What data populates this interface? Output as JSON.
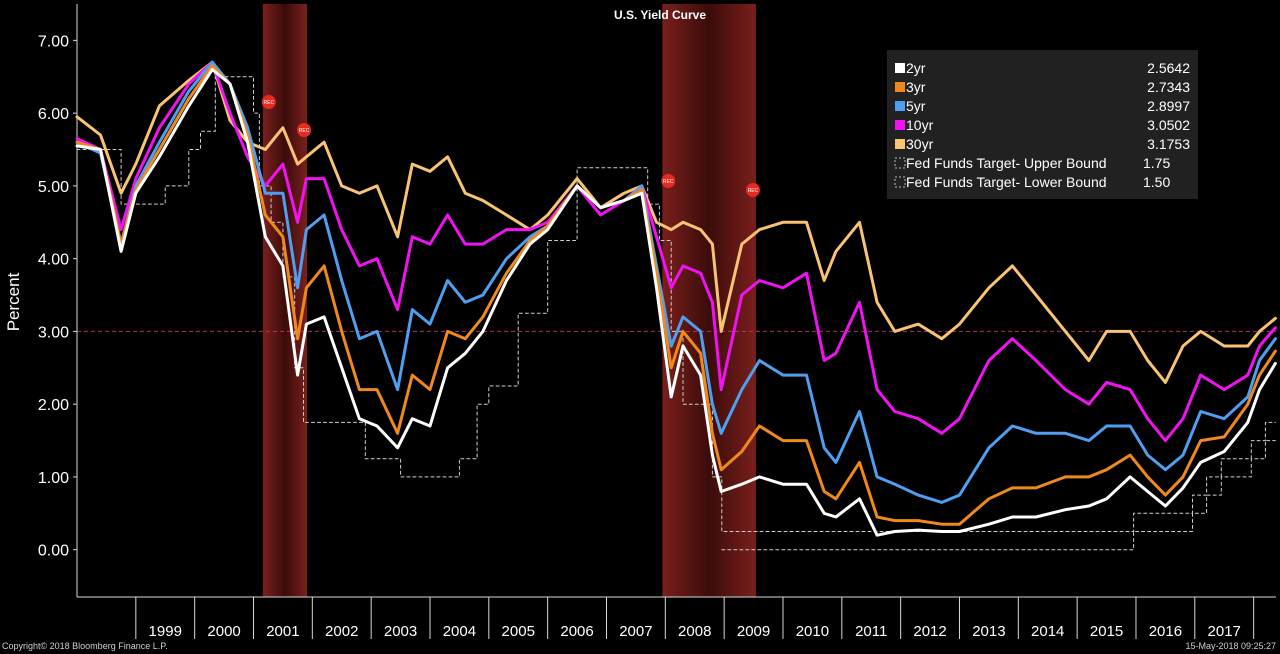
{
  "chart_data": {
    "type": "line",
    "title": "U.S. Yield Curve",
    "ylabel": "Percent",
    "xlabel": "",
    "ylim": [
      -0.65,
      7.5
    ],
    "xlim": [
      1998.0,
      2018.38
    ],
    "yticks": [
      0.0,
      1.0,
      2.0,
      3.0,
      4.0,
      5.0,
      6.0,
      7.0
    ],
    "ytick_labels": [
      "0.00",
      "1.00",
      "2.00",
      "3.00",
      "4.00",
      "5.00",
      "6.00",
      "7.00"
    ],
    "xtick_labels": [
      "1999",
      "2000",
      "2001",
      "2002",
      "2003",
      "2004",
      "2005",
      "2006",
      "2007",
      "2008",
      "2009",
      "2010",
      "2011",
      "2012",
      "2013",
      "2014",
      "2015",
      "2016",
      "2017"
    ],
    "reference_line": 3.0,
    "grid": false,
    "legend_position": "top-right",
    "recessions": [
      [
        2001.16,
        2001.91
      ],
      [
        2007.95,
        2009.54
      ]
    ],
    "recession_marker": "REC",
    "series": [
      {
        "name": "2yr",
        "value_label": "2.5642",
        "color": "#ffffff",
        "x": [
          1998.0,
          1998.4,
          1998.75,
          1999.0,
          1999.4,
          1999.9,
          2000.3,
          2000.6,
          2000.9,
          2001.2,
          2001.5,
          2001.75,
          2001.9,
          2002.2,
          2002.5,
          2002.8,
          2003.1,
          2003.45,
          2003.7,
          2004.0,
          2004.3,
          2004.6,
          2004.9,
          2005.3,
          2005.7,
          2006.0,
          2006.5,
          2006.9,
          2007.3,
          2007.6,
          2007.85,
          2008.1,
          2008.3,
          2008.6,
          2008.8,
          2008.95,
          2009.3,
          2009.6,
          2010.0,
          2010.4,
          2010.7,
          2010.9,
          2011.3,
          2011.6,
          2011.9,
          2012.3,
          2012.7,
          2013.0,
          2013.5,
          2013.9,
          2014.3,
          2014.8,
          2015.2,
          2015.5,
          2015.9,
          2016.2,
          2016.5,
          2016.8,
          2017.1,
          2017.5,
          2017.9,
          2018.1,
          2018.37
        ],
        "y": [
          5.55,
          5.5,
          4.1,
          4.9,
          5.4,
          6.1,
          6.6,
          6.4,
          5.6,
          4.3,
          3.9,
          2.4,
          3.1,
          3.2,
          2.5,
          1.8,
          1.7,
          1.4,
          1.8,
          1.7,
          2.5,
          2.7,
          3.0,
          3.7,
          4.2,
          4.4,
          5.0,
          4.7,
          4.8,
          4.9,
          3.6,
          2.1,
          2.8,
          2.4,
          1.3,
          0.8,
          0.9,
          1.0,
          0.9,
          0.9,
          0.5,
          0.45,
          0.7,
          0.2,
          0.25,
          0.27,
          0.25,
          0.25,
          0.35,
          0.45,
          0.45,
          0.55,
          0.6,
          0.7,
          1.0,
          0.8,
          0.6,
          0.85,
          1.2,
          1.35,
          1.75,
          2.2,
          2.56
        ]
      },
      {
        "name": "3yr",
        "value_label": "2.7343",
        "color": "#f0891d",
        "x": [
          1998.0,
          1998.4,
          1998.75,
          1999.0,
          1999.4,
          1999.9,
          2000.3,
          2000.6,
          2000.9,
          2001.2,
          2001.5,
          2001.75,
          2001.9,
          2002.2,
          2002.5,
          2002.8,
          2003.1,
          2003.45,
          2003.7,
          2004.0,
          2004.3,
          2004.6,
          2004.9,
          2005.3,
          2005.7,
          2006.0,
          2006.5,
          2006.9,
          2007.3,
          2007.6,
          2007.85,
          2008.1,
          2008.3,
          2008.6,
          2008.8,
          2008.95,
          2009.3,
          2009.6,
          2010.0,
          2010.4,
          2010.7,
          2010.9,
          2011.3,
          2011.6,
          2011.9,
          2012.3,
          2012.7,
          2013.0,
          2013.5,
          2013.9,
          2014.3,
          2014.8,
          2015.2,
          2015.5,
          2015.9,
          2016.2,
          2016.5,
          2016.8,
          2017.1,
          2017.5,
          2017.9,
          2018.1,
          2018.37
        ],
        "y": [
          5.6,
          5.5,
          4.2,
          4.95,
          5.5,
          6.2,
          6.65,
          6.4,
          5.7,
          4.6,
          4.3,
          2.9,
          3.6,
          3.9,
          3.0,
          2.2,
          2.2,
          1.6,
          2.4,
          2.2,
          3.0,
          2.9,
          3.2,
          3.8,
          4.25,
          4.45,
          5.0,
          4.7,
          4.8,
          4.95,
          3.8,
          2.5,
          3.0,
          2.7,
          1.6,
          1.1,
          1.35,
          1.7,
          1.5,
          1.5,
          0.8,
          0.7,
          1.2,
          0.45,
          0.4,
          0.4,
          0.35,
          0.35,
          0.7,
          0.85,
          0.85,
          1.0,
          1.0,
          1.1,
          1.3,
          1.0,
          0.75,
          1.0,
          1.5,
          1.55,
          2.0,
          2.4,
          2.73
        ]
      },
      {
        "name": "5yr",
        "value_label": "2.8997",
        "color": "#4f9ff0",
        "x": [
          1998.0,
          1998.4,
          1998.75,
          1999.0,
          1999.4,
          1999.9,
          2000.3,
          2000.6,
          2000.9,
          2001.2,
          2001.5,
          2001.75,
          2001.9,
          2002.2,
          2002.5,
          2002.8,
          2003.1,
          2003.45,
          2003.7,
          2004.0,
          2004.3,
          2004.6,
          2004.9,
          2005.3,
          2005.7,
          2006.0,
          2006.5,
          2006.9,
          2007.3,
          2007.6,
          2007.85,
          2008.1,
          2008.3,
          2008.6,
          2008.8,
          2008.95,
          2009.3,
          2009.6,
          2010.0,
          2010.4,
          2010.7,
          2010.9,
          2011.3,
          2011.6,
          2011.9,
          2012.3,
          2012.7,
          2013.0,
          2013.5,
          2013.9,
          2014.3,
          2014.8,
          2015.2,
          2015.5,
          2015.9,
          2016.2,
          2016.5,
          2016.8,
          2017.1,
          2017.5,
          2017.9,
          2018.1,
          2018.37
        ],
        "y": [
          5.6,
          5.45,
          4.2,
          5.0,
          5.6,
          6.3,
          6.7,
          6.4,
          5.8,
          4.9,
          4.9,
          3.6,
          4.4,
          4.6,
          3.7,
          2.9,
          3.0,
          2.2,
          3.3,
          3.1,
          3.7,
          3.4,
          3.5,
          4.0,
          4.3,
          4.45,
          5.0,
          4.7,
          4.8,
          5.0,
          3.9,
          2.8,
          3.2,
          3.0,
          2.0,
          1.6,
          2.2,
          2.6,
          2.4,
          2.4,
          1.4,
          1.2,
          1.9,
          1.0,
          0.9,
          0.75,
          0.65,
          0.75,
          1.4,
          1.7,
          1.6,
          1.6,
          1.5,
          1.7,
          1.7,
          1.3,
          1.1,
          1.3,
          1.9,
          1.8,
          2.1,
          2.6,
          2.9
        ]
      },
      {
        "name": "10yr",
        "value_label": "3.0502",
        "color": "#f012f0",
        "x": [
          1998.0,
          1998.4,
          1998.75,
          1999.0,
          1999.4,
          1999.9,
          2000.3,
          2000.6,
          2000.9,
          2001.2,
          2001.5,
          2001.75,
          2001.9,
          2002.2,
          2002.5,
          2002.8,
          2003.1,
          2003.45,
          2003.7,
          2004.0,
          2004.3,
          2004.6,
          2004.9,
          2005.3,
          2005.7,
          2006.0,
          2006.5,
          2006.9,
          2007.3,
          2007.6,
          2007.85,
          2008.1,
          2008.3,
          2008.6,
          2008.8,
          2008.95,
          2009.3,
          2009.6,
          2010.0,
          2010.4,
          2010.7,
          2010.9,
          2011.3,
          2011.6,
          2011.9,
          2012.3,
          2012.7,
          2013.0,
          2013.5,
          2013.9,
          2014.3,
          2014.8,
          2015.2,
          2015.5,
          2015.9,
          2016.2,
          2016.5,
          2016.8,
          2017.1,
          2017.5,
          2017.9,
          2018.1,
          2018.37
        ],
        "y": [
          5.65,
          5.5,
          4.4,
          5.1,
          5.8,
          6.4,
          6.7,
          6.0,
          5.4,
          5.0,
          5.3,
          4.5,
          5.1,
          5.1,
          4.4,
          3.9,
          4.0,
          3.3,
          4.3,
          4.2,
          4.6,
          4.2,
          4.2,
          4.4,
          4.4,
          4.5,
          5.0,
          4.6,
          4.8,
          5.0,
          4.3,
          3.6,
          3.9,
          3.8,
          3.4,
          2.2,
          3.5,
          3.7,
          3.6,
          3.8,
          2.6,
          2.7,
          3.4,
          2.2,
          1.9,
          1.8,
          1.6,
          1.8,
          2.6,
          2.9,
          2.6,
          2.2,
          2.0,
          2.3,
          2.2,
          1.8,
          1.5,
          1.8,
          2.4,
          2.2,
          2.4,
          2.8,
          3.05
        ]
      },
      {
        "name": "30yr",
        "value_label": "3.1753",
        "color": "#f8c373",
        "x": [
          1998.0,
          1998.4,
          1998.75,
          1999.0,
          1999.4,
          1999.9,
          2000.3,
          2000.6,
          2000.9,
          2001.2,
          2001.5,
          2001.75,
          2001.9,
          2002.2,
          2002.5,
          2002.8,
          2003.1,
          2003.45,
          2003.7,
          2004.0,
          2004.3,
          2004.6,
          2004.9,
          2005.3,
          2005.7,
          2006.0,
          2006.5,
          2006.9,
          2007.3,
          2007.6,
          2007.85,
          2008.1,
          2008.3,
          2008.6,
          2008.8,
          2008.95,
          2009.3,
          2009.6,
          2010.0,
          2010.4,
          2010.7,
          2010.9,
          2011.3,
          2011.6,
          2011.9,
          2012.3,
          2012.7,
          2013.0,
          2013.5,
          2013.9,
          2014.3,
          2014.8,
          2015.2,
          2015.5,
          2015.9,
          2016.2,
          2016.5,
          2016.8,
          2017.1,
          2017.5,
          2017.9,
          2018.1,
          2018.37
        ],
        "y": [
          5.95,
          5.7,
          4.9,
          5.3,
          6.1,
          6.45,
          6.7,
          5.9,
          5.6,
          5.5,
          5.8,
          5.3,
          5.4,
          5.6,
          5.0,
          4.9,
          5.0,
          4.3,
          5.3,
          5.2,
          5.4,
          4.9,
          4.8,
          4.6,
          4.4,
          4.6,
          5.1,
          4.7,
          4.9,
          5.0,
          4.5,
          4.4,
          4.5,
          4.4,
          4.2,
          3.0,
          4.2,
          4.4,
          4.5,
          4.5,
          3.7,
          4.1,
          4.5,
          3.4,
          3.0,
          3.1,
          2.9,
          3.1,
          3.6,
          3.9,
          3.5,
          3.0,
          2.6,
          3.0,
          3.0,
          2.6,
          2.3,
          2.8,
          3.0,
          2.8,
          2.8,
          3.0,
          3.18
        ]
      },
      {
        "name": "Fed Funds Target- Upper Bound",
        "value_label": "1.75",
        "color": "#d0d0d0",
        "dashed": true,
        "step": true,
        "x": [
          1998.0,
          1998.75,
          1999.5,
          1999.9,
          2000.1,
          2000.35,
          2001.0,
          2001.1,
          2001.3,
          2001.5,
          2001.7,
          2001.85,
          2002.9,
          2003.5,
          2004.5,
          2004.8,
          2005.0,
          2005.5,
          2006.0,
          2006.5,
          2007.7,
          2007.9,
          2008.1,
          2008.3,
          2008.8,
          2008.96,
          2015.96,
          2016.96,
          2017.2,
          2017.45,
          2017.96,
          2018.2,
          2018.37
        ],
        "y": [
          5.5,
          4.75,
          5.0,
          5.5,
          5.75,
          6.5,
          6.0,
          5.0,
          4.5,
          3.75,
          2.5,
          1.75,
          1.25,
          1.0,
          1.25,
          2.0,
          2.25,
          3.25,
          4.25,
          5.25,
          4.75,
          4.25,
          3.0,
          2.0,
          1.0,
          0.25,
          0.5,
          0.75,
          1.0,
          1.25,
          1.5,
          1.75,
          1.75
        ]
      },
      {
        "name": "Fed Funds Target- Lower Bound",
        "value_label": "1.50",
        "color": "#d0d0d0",
        "dashed": true,
        "step": true,
        "x": [
          2008.96,
          2015.96,
          2016.96,
          2017.2,
          2017.45,
          2017.96,
          2018.2,
          2018.37
        ],
        "y": [
          0.0,
          0.25,
          0.5,
          0.75,
          1.0,
          1.25,
          1.5,
          1.5
        ]
      }
    ]
  },
  "footer": {
    "copyright": "Copyright© 2018 Bloomberg Finance L.P.",
    "timestamp": "15-May-2018 09:25:27"
  }
}
